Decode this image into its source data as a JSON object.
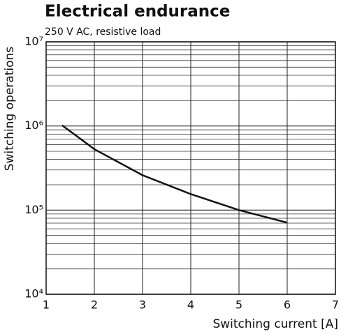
{
  "chart_data": {
    "type": "line",
    "title": "Electrical endurance",
    "subtitle": "250 V AC, resistive load",
    "x_label": "Switching current [A]",
    "y_label": "Switching operations",
    "series": [
      {
        "x": [
          1.33,
          2,
          3,
          4,
          5,
          6
        ],
        "values": [
          1020000,
          530000,
          260000,
          155000,
          100000,
          71000
        ],
        "color": "#111111"
      }
    ],
    "xlim": [
      1,
      7
    ],
    "xticks": [
      1,
      2,
      3,
      4,
      5,
      6,
      7
    ],
    "ylim": [
      10000,
      10000000
    ],
    "y_log": true,
    "yticks": [
      {
        "value": 10000,
        "label": "10⁴"
      },
      {
        "value": 100000,
        "label": "10⁵"
      },
      {
        "value": 1000000,
        "label": "10⁶"
      },
      {
        "value": 10000000,
        "label": "10⁷"
      }
    ],
    "y_minor_gridlines": [
      20000,
      30000,
      40000,
      50000,
      60000,
      70000,
      80000,
      90000,
      200000,
      300000,
      400000,
      500000,
      600000,
      700000,
      800000,
      900000,
      2000000,
      3000000,
      4000000,
      5000000,
      6000000,
      7000000,
      8000000,
      9000000
    ],
    "grid": true
  }
}
